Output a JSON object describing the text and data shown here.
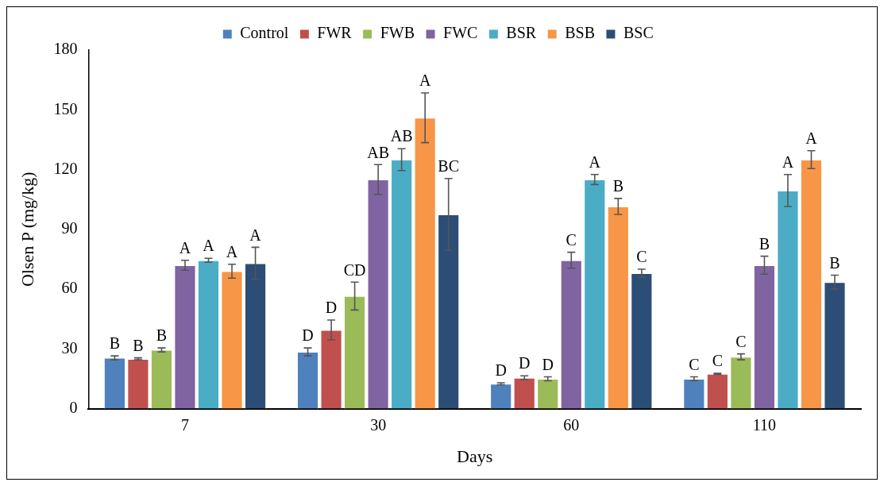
{
  "chart_data": {
    "type": "bar",
    "xlabel": "Days",
    "ylabel": "Olsen P (mg/kg)",
    "categories": [
      "7",
      "30",
      "60",
      "110"
    ],
    "ylim": [
      0,
      180
    ],
    "yticks": [
      0,
      30,
      60,
      90,
      120,
      150,
      180
    ],
    "grid": false,
    "legend": "top",
    "series": [
      {
        "name": "Control",
        "color": "#4f81bd",
        "values": [
          25.5,
          28.5,
          12.5,
          15
        ],
        "errors": [
          1,
          2,
          0.5,
          1
        ],
        "value_labels": [
          "B",
          "D",
          "D",
          "C"
        ]
      },
      {
        "name": "FWR",
        "color": "#c0504d",
        "values": [
          25,
          39.5,
          15.5,
          17.5
        ],
        "errors": [
          0.5,
          5,
          1,
          0.3
        ],
        "value_labels": [
          "B",
          "D",
          "D",
          "C"
        ]
      },
      {
        "name": "FWB",
        "color": "#9bbb59",
        "values": [
          29.5,
          56.5,
          15,
          26
        ],
        "errors": [
          1,
          7,
          1,
          1.5
        ],
        "value_labels": [
          "B",
          "CD",
          "D",
          "C"
        ]
      },
      {
        "name": "FWC",
        "color": "#8064a2",
        "values": [
          72,
          115,
          74.5,
          72
        ],
        "errors": [
          2.5,
          7.5,
          4,
          4.5
        ],
        "value_labels": [
          "A",
          "AB",
          "C",
          "B"
        ]
      },
      {
        "name": "BSR",
        "color": "#4bacc6",
        "values": [
          74.5,
          125,
          115,
          109.5
        ],
        "errors": [
          1,
          5.5,
          2.5,
          8
        ],
        "value_labels": [
          "A",
          "AB",
          "A",
          "A"
        ]
      },
      {
        "name": "BSB",
        "color": "#f79646",
        "values": [
          69,
          146,
          101.5,
          125
        ],
        "errors": [
          3.5,
          12.5,
          4,
          4.5
        ],
        "value_labels": [
          "A",
          "A",
          "B",
          "A"
        ]
      },
      {
        "name": "BSC",
        "color": "#2c4d75",
        "values": [
          73,
          97.5,
          68,
          63.5
        ],
        "errors": [
          8,
          18,
          2,
          3.5
        ],
        "value_labels": [
          "A",
          "BC",
          "C",
          "B"
        ]
      }
    ]
  }
}
